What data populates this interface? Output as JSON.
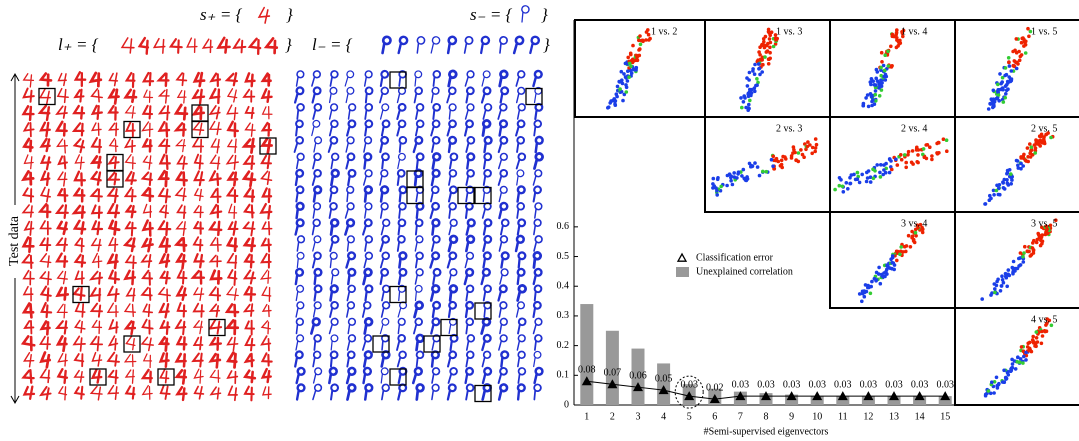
{
  "header": {
    "s_plus": "s₊ = {",
    "s_minus": "s₋ = {",
    "l_plus": "l₊ = {",
    "l_minus": "l₋ = {",
    "close": "}"
  },
  "side_label": "Test data",
  "scatter_matrix": {
    "panels": [
      "1 vs. 2",
      "1 vs. 3",
      "1 vs. 4",
      "1 vs. 5",
      "2 vs. 3",
      "2 vs. 4",
      "2 vs. 5",
      "3 vs. 4",
      "3 vs. 5",
      "4 vs. 5"
    ]
  },
  "chart_data": {
    "type": "bar",
    "x_label": "#Semi-supervised eigenvectors",
    "x": [
      1,
      2,
      3,
      4,
      5,
      6,
      7,
      8,
      9,
      10,
      11,
      12,
      13,
      14,
      15
    ],
    "xlim": [
      0.5,
      15.5
    ],
    "xticks": [
      1,
      2,
      3,
      4,
      5,
      6,
      7,
      8,
      9,
      10,
      11,
      12,
      13,
      14,
      15
    ],
    "ylim": [
      0,
      0.65
    ],
    "yticks": [
      0,
      0.1,
      0.2,
      0.3,
      0.4,
      0.5,
      0.6
    ],
    "legend": "upper left",
    "series": [
      {
        "name": "Classification error",
        "type": "line",
        "marker": "triangle",
        "color": "#000000",
        "values": [
          0.08,
          0.07,
          0.06,
          0.05,
          0.03,
          0.02,
          0.03,
          0.03,
          0.03,
          0.03,
          0.03,
          0.03,
          0.03,
          0.03,
          0.03
        ]
      },
      {
        "name": "Unexplained correlation",
        "type": "bar",
        "color": "#999999",
        "values": [
          0.34,
          0.25,
          0.19,
          0.14,
          0.07,
          0.055,
          0.045,
          0.04,
          0.035,
          0.03,
          0.03,
          0.03,
          0.03,
          0.03,
          0.03
        ]
      }
    ]
  }
}
